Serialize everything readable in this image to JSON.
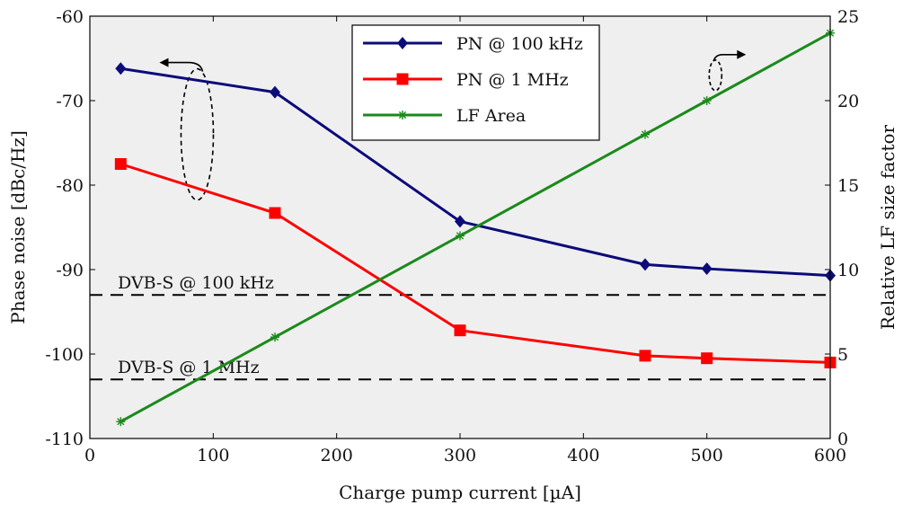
{
  "chart_data": {
    "type": "line",
    "xlabel": "Charge pump current [µA]",
    "ylabel_left": "Phase noise [dBc/Hz]",
    "ylabel_right": "Relative LF size factor",
    "xlim": [
      0,
      600
    ],
    "ylim_left": [
      -110,
      -60
    ],
    "ylim_right": [
      0,
      25
    ],
    "x_ticks": [
      0,
      100,
      200,
      300,
      400,
      500,
      600
    ],
    "y_left_ticks": [
      -60,
      -70,
      -80,
      -90,
      -100,
      -110
    ],
    "y_right_ticks": [
      0,
      5,
      10,
      15,
      20,
      25
    ],
    "grid": false,
    "legend_position": "top-center",
    "background": "#efefef",
    "series": [
      {
        "name": "PN @ 100 kHz",
        "axis": "left",
        "color": "#0b0b7a",
        "marker": "diamond",
        "x": [
          25,
          150,
          300,
          450,
          500,
          600
        ],
        "y": [
          -66.2,
          -69.0,
          -84.3,
          -89.4,
          -89.9,
          -90.7
        ]
      },
      {
        "name": "PN @ 1 MHz",
        "axis": "left",
        "color": "#ff0000",
        "marker": "square",
        "x": [
          25,
          150,
          300,
          450,
          500,
          600
        ],
        "y": [
          -77.5,
          -83.3,
          -97.2,
          -100.2,
          -100.5,
          -101.0
        ]
      },
      {
        "name": "LF Area",
        "axis": "right",
        "color": "#1a8a1a",
        "marker": "asterisk",
        "x": [
          25,
          150,
          300,
          450,
          500,
          600
        ],
        "y": [
          1,
          6,
          12,
          18,
          20,
          24
        ]
      }
    ],
    "reference_lines": [
      {
        "label": "DVB-S @ 100 kHz",
        "axis": "left",
        "y": -93
      },
      {
        "label": "DVB-S @ 1 MHz",
        "axis": "left",
        "y": -103
      }
    ]
  }
}
